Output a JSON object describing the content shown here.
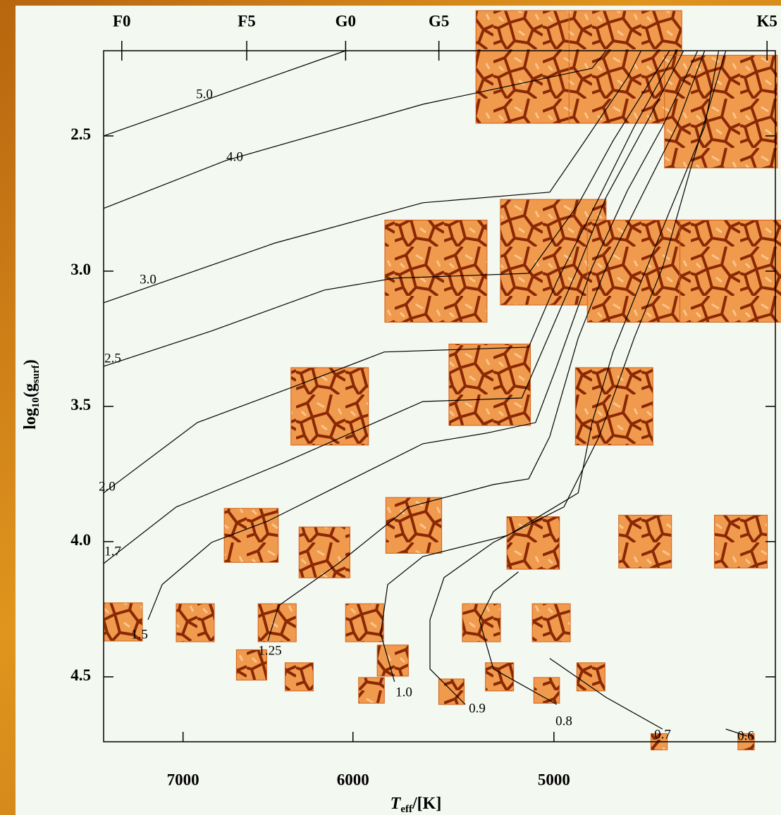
{
  "chart_data": {
    "type": "scatter",
    "xlabel": [
      "T",
      "eff",
      "/[K]"
    ],
    "ylabel": [
      "log",
      "10",
      "(g",
      "surf",
      ")"
    ],
    "xlim": [
      7523,
      4090
    ],
    "xscale": "log",
    "xticks": [
      7000,
      6000,
      5000
    ],
    "x2ticks": [
      {
        "value": 7400,
        "label": "F0"
      },
      {
        "value": 6607,
        "label": "F5"
      },
      {
        "value": 6040,
        "label": "G0"
      },
      {
        "value": 5550,
        "label": "G5"
      },
      {
        "value": 4121,
        "label": "K5"
      }
    ],
    "ylim": [
      4.74,
      2.185
    ],
    "yticks": [
      {
        "value": 2.5,
        "label": "2.5"
      },
      {
        "value": 3.0,
        "label": "3.0"
      },
      {
        "value": 3.5,
        "label": "3.5"
      },
      {
        "value": 4.0,
        "label": "4.0"
      },
      {
        "value": 4.5,
        "label": "4.5"
      }
    ],
    "color": "#d2601a",
    "x": [
      7390,
      6923,
      6427,
      5937,
      5340,
      5012,
      6578,
      6300,
      5787,
      5900,
      5487,
      5253,
      5033,
      4835,
      4545,
      4200,
      6580,
      6157,
      5678,
      5095,
      4603,
      4220,
      6128,
      5300,
      4734,
      5565,
      5003,
      4631,
      4258,
      5099,
      4686,
      4297
    ],
    "y": [
      4.297,
      4.3,
      4.3,
      4.3,
      4.3,
      4.3,
      4.456,
      4.5,
      4.44,
      4.55,
      4.555,
      4.5,
      4.55,
      4.5,
      4.74,
      4.74,
      3.977,
      4.04,
      3.94,
      4.005,
      4.0,
      4.0,
      3.5,
      3.42,
      3.5,
      3.0,
      2.93,
      3.0,
      3.0,
      2.245,
      2.245,
      2.41
    ],
    "track_color": "#000000",
    "tracks": [
      {
        "name": "5.0",
        "x": [
          7523,
          6040
        ],
        "y": [
          2.5,
          2.185
        ]
      },
      {
        "name": "4.0",
        "x": [
          7523,
          6734,
          5631,
          4830,
          4769
        ],
        "y": [
          2.768,
          2.591,
          2.383,
          2.25,
          2.185
        ]
      },
      {
        "name": "3.0",
        "x": [
          7523,
          6440,
          5631,
          5019,
          4861,
          4677,
          4620
        ],
        "y": [
          3.117,
          2.896,
          2.747,
          2.708,
          2.518,
          2.284,
          2.185
        ]
      },
      {
        "name": "2.5",
        "x": [
          7523,
          6821,
          6158,
          5778,
          5116,
          4891,
          4739,
          4590,
          4502
        ],
        "y": [
          3.352,
          3.221,
          3.07,
          3.026,
          3.008,
          2.753,
          2.518,
          2.31,
          2.185
        ]
      },
      {
        "name": "2.0",
        "x": [
          7523,
          6910,
          6318,
          5832,
          5116,
          4987,
          4799,
          4649,
          4474
        ],
        "y": [
          3.82,
          3.56,
          3.424,
          3.299,
          3.281,
          3.039,
          2.727,
          2.466,
          2.185
        ]
      },
      {
        "name": "1.7",
        "x": [
          7523,
          7043,
          6399,
          5631,
          5148,
          5084,
          4891,
          4769,
          4590,
          4445
        ],
        "y": [
          4.081,
          3.872,
          3.711,
          3.482,
          3.469,
          3.352,
          2.987,
          2.727,
          2.44,
          2.185
        ]
      },
      {
        "name": "1.5",
        "x": [
          7226,
          7134,
          6821,
          6481,
          6119,
          5631,
          5316,
          5084,
          4987,
          4830,
          4677,
          4531,
          4389
        ],
        "y": [
          4.289,
          4.159,
          4.003,
          3.924,
          3.807,
          3.638,
          3.599,
          3.56,
          3.352,
          2.987,
          2.701,
          2.466,
          2.185
        ]
      },
      {
        "name": "1.25",
        "x": [
          6481,
          6419,
          6080,
          5704,
          5282,
          5116,
          5019,
          4891,
          4769,
          4620,
          4474,
          4361
        ],
        "y": [
          4.367,
          4.237,
          4.081,
          3.872,
          3.789,
          3.768,
          3.612,
          3.247,
          2.987,
          2.727,
          2.466,
          2.185
        ]
      },
      {
        "name": "1.0",
        "x": [
          5778,
          5851,
          5814,
          5631,
          5213,
          4891,
          4830,
          4739,
          4620,
          4502,
          4361,
          4306
        ],
        "y": [
          4.518,
          4.341,
          4.159,
          4.055,
          3.977,
          3.82,
          3.56,
          3.299,
          3.039,
          2.779,
          2.466,
          2.185
        ]
      },
      {
        "name": "0.9",
        "x": [
          5419,
          5595,
          5595,
          5524,
          5282,
          4955,
          4799,
          4649,
          4531,
          4417,
          4278
        ],
        "y": [
          4.602,
          4.471,
          4.289,
          4.133,
          4.003,
          3.872,
          3.612,
          3.247,
          2.987,
          2.622,
          2.185
        ]
      },
      {
        "name": "0.8",
        "x": [
          4987,
          5282,
          5350,
          5282,
          5164
        ],
        "y": [
          4.602,
          4.471,
          4.289,
          4.185,
          4.112
        ]
      },
      {
        "name": "0.7",
        "x": [
          4531,
          4769,
          5019
        ],
        "y": [
          4.693,
          4.576,
          4.432
        ]
      },
      {
        "name": "0.6",
        "x": [
          4196,
          4278
        ],
        "y": [
          4.719,
          4.693
        ]
      }
    ]
  }
}
